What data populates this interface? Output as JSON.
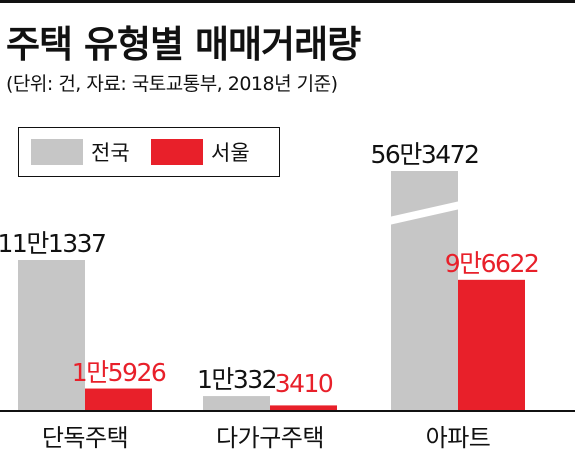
{
  "title": "주택 유형별 매매거래량",
  "subtitle": "(단위: 건, 자료: 국토교통부, 2018년 기준)",
  "colors": {
    "national": "#c6c6c6",
    "seoul": "#e8202a",
    "text_dark": "#111111",
    "text_red": "#e8202a"
  },
  "chart_data": {
    "type": "bar",
    "categories": [
      "단독주택",
      "다가구주택",
      "아파트"
    ],
    "series": [
      {
        "name": "전국",
        "values": [
          111337,
          10332,
          563472
        ],
        "labels": [
          "11만1337",
          "1만332",
          "56만3472"
        ]
      },
      {
        "name": "서울",
        "values": [
          15926,
          3410,
          96622
        ],
        "labels": [
          "1만5926",
          "3410",
          "9만6622"
        ]
      }
    ],
    "axis_break": {
      "category": "아파트",
      "series": "전국"
    },
    "legend_position": "top-left",
    "grid": false
  }
}
